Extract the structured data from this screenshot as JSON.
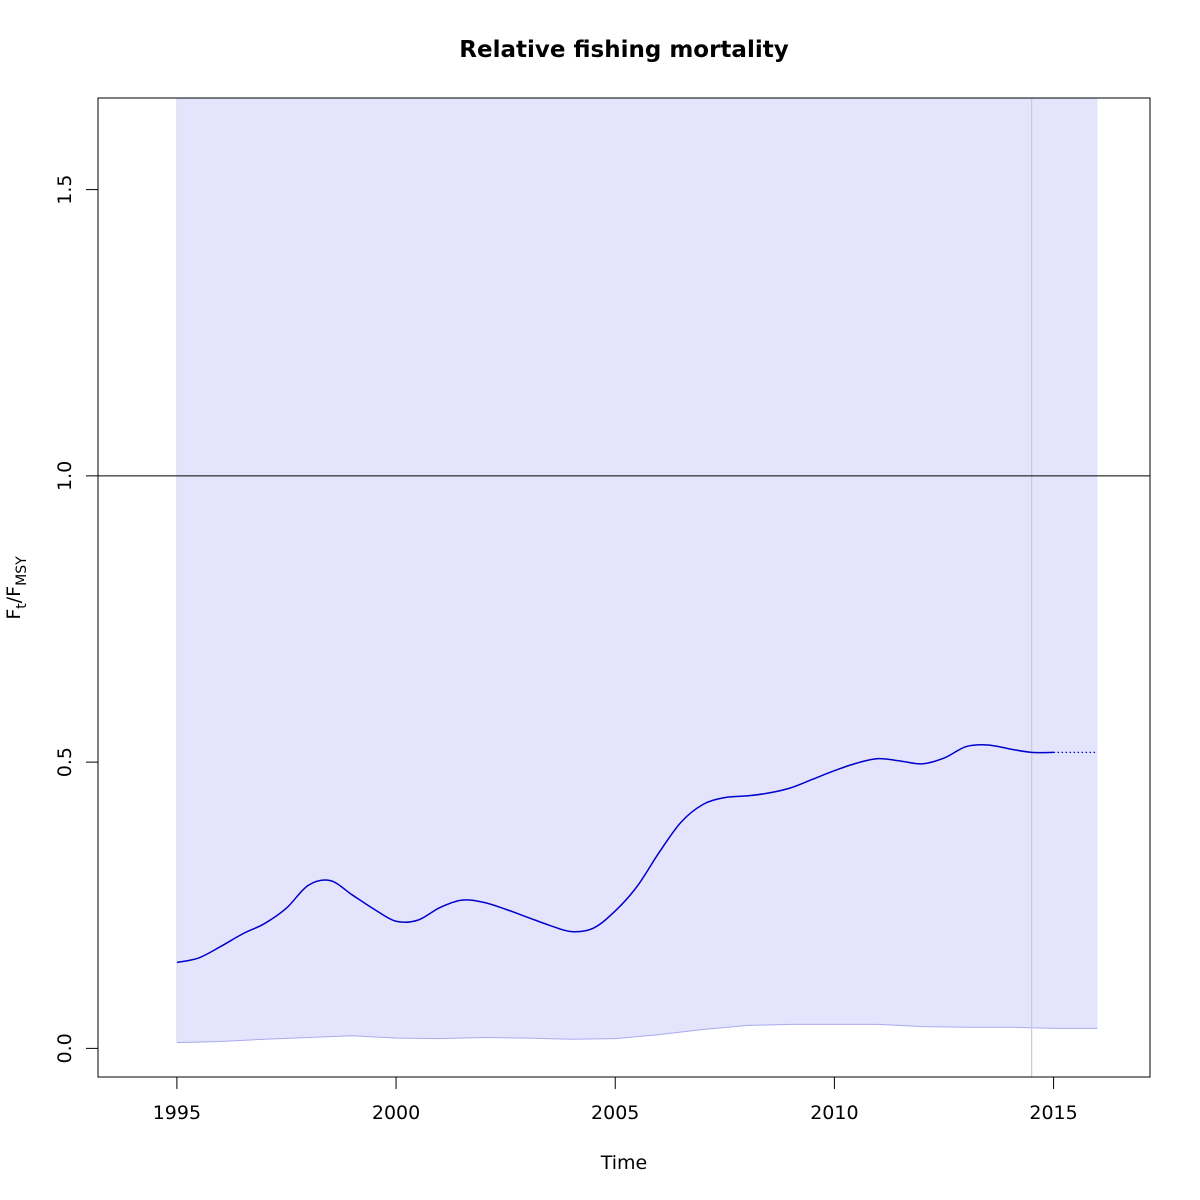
{
  "chart_data": {
    "type": "line",
    "title": "Relative fishing mortality",
    "xlabel": "Time",
    "ylabel": {
      "main": "F",
      "sub1": "t",
      "sep": "/F",
      "sub2": "MSY"
    },
    "xlim": [
      1993.2,
      2017.2
    ],
    "ylim": [
      -0.05,
      1.66
    ],
    "x_ticks": [
      1995,
      2000,
      2005,
      2010,
      2015
    ],
    "x_tick_labels": [
      "1995",
      "2000",
      "2005",
      "2010",
      "2015"
    ],
    "y_ticks": [
      0.0,
      0.5,
      1.0,
      1.5
    ],
    "y_tick_labels": [
      "0.0",
      "0.5",
      "1.0",
      "1.5"
    ],
    "reference_line_y": 1.0,
    "vertical_marker_x": 2014.5,
    "band": {
      "x_start": 1995,
      "x_end": 2016,
      "upper": 1.66,
      "lower": {
        "x": [
          1995,
          1996,
          1997,
          1998,
          1999,
          2000,
          2001,
          2002,
          2003,
          2004,
          2005,
          2006,
          2007,
          2008,
          2009,
          2010,
          2011,
          2012,
          2013,
          2014,
          2015,
          2016
        ],
        "y": [
          0.01,
          0.012,
          0.016,
          0.019,
          0.022,
          0.018,
          0.017,
          0.019,
          0.018,
          0.016,
          0.017,
          0.024,
          0.033,
          0.04,
          0.042,
          0.042,
          0.042,
          0.038,
          0.037,
          0.037,
          0.035,
          0.035
        ]
      }
    },
    "series": [
      {
        "style": "solid",
        "x": [
          1995,
          1995.5,
          1996,
          1996.5,
          1997,
          1997.5,
          1998,
          1998.5,
          1999,
          1999.5,
          2000,
          2000.5,
          2001,
          2001.5,
          2002,
          2002.5,
          2003,
          2003.5,
          2004,
          2004.5,
          2005,
          2005.5,
          2006,
          2006.5,
          2007,
          2007.5,
          2008,
          2008.5,
          2009,
          2009.5,
          2010,
          2010.5,
          2011,
          2011.5,
          2012,
          2012.5,
          2013,
          2013.5,
          2014,
          2014.5,
          2015
        ],
        "y": [
          0.15,
          0.158,
          0.178,
          0.2,
          0.218,
          0.245,
          0.285,
          0.293,
          0.268,
          0.243,
          0.222,
          0.224,
          0.246,
          0.259,
          0.255,
          0.243,
          0.229,
          0.215,
          0.204,
          0.21,
          0.24,
          0.283,
          0.342,
          0.395,
          0.426,
          0.438,
          0.441,
          0.446,
          0.455,
          0.47,
          0.485,
          0.498,
          0.506,
          0.502,
          0.497,
          0.507,
          0.527,
          0.53,
          0.523,
          0.517,
          0.517
        ]
      },
      {
        "style": "dotted",
        "x": [
          2015,
          2016
        ],
        "y": [
          0.517,
          0.517
        ]
      }
    ],
    "colors": {
      "band_fill": "#e4e4fd",
      "line": "#0000cc",
      "band_lower_edge": "#aaaaee",
      "axis": "#000000",
      "marker_line": "#c8c8d6"
    },
    "grid": false,
    "legend": "none"
  }
}
